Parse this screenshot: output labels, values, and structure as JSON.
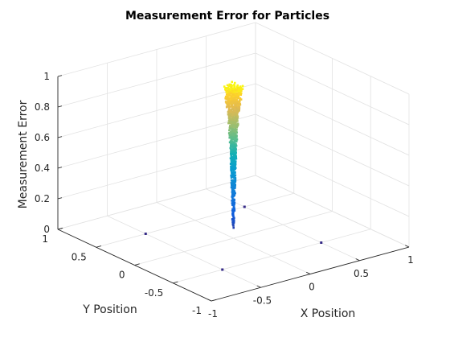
{
  "chart_data": {
    "type": "scatter3d",
    "title": "Measurement Error for Particles",
    "xlabel": "X Position",
    "ylabel": "Y Position",
    "zlabel": "Measurement Error",
    "xlim": [
      -1,
      1
    ],
    "ylim": [
      -1,
      1
    ],
    "zlim": [
      0,
      1
    ],
    "x_ticks": [
      -1,
      -0.5,
      0,
      0.5,
      1
    ],
    "y_ticks": [
      -1,
      -0.5,
      0,
      0.5,
      1
    ],
    "z_ticks": [
      0,
      0.2,
      0.4,
      0.6,
      0.8,
      1
    ],
    "x_tick_labels": [
      "-1",
      "-0.5",
      "0",
      "0.5",
      "1"
    ],
    "y_tick_labels": [
      "-1",
      "-0.5",
      "0",
      "0.5",
      "1"
    ],
    "z_tick_labels": [
      "0",
      "0.2",
      "0.4",
      "0.6",
      "0.8",
      "1"
    ],
    "grid": true,
    "colormap": "parula",
    "outlier_points": [
      {
        "x": -0.5,
        "y": 0.5,
        "z": 0
      },
      {
        "x": 0.5,
        "y": 0.5,
        "z": 0
      },
      {
        "x": -0.5,
        "y": -0.5,
        "z": 0
      },
      {
        "x": 0.5,
        "y": -0.5,
        "z": 0
      }
    ],
    "cluster_profile": [
      {
        "z": 0.05,
        "spread": 0.01
      },
      {
        "z": 0.2,
        "spread": 0.012
      },
      {
        "z": 0.4,
        "spread": 0.018
      },
      {
        "z": 0.6,
        "spread": 0.026
      },
      {
        "z": 0.8,
        "spread": 0.045
      },
      {
        "z": 0.95,
        "spread": 0.07
      },
      {
        "z": 1.0,
        "spread": 0.085
      }
    ]
  }
}
